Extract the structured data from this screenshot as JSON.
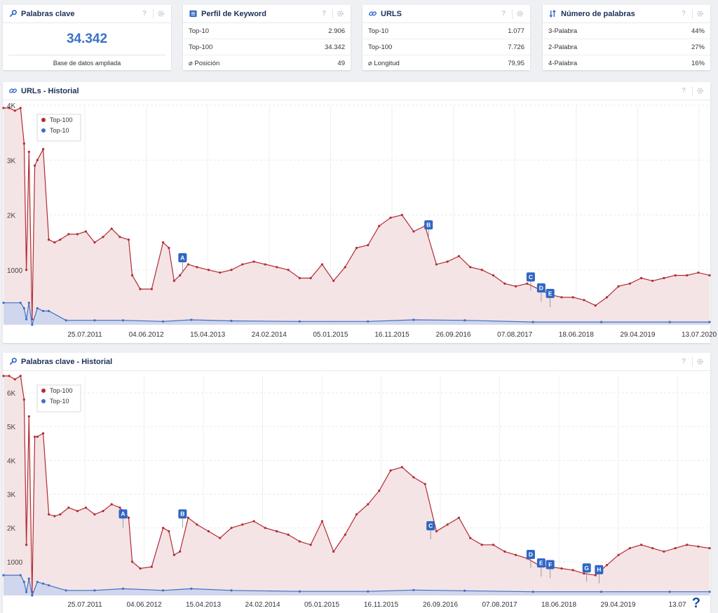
{
  "cards": [
    {
      "title": "Palabras clave",
      "icon": "key-icon",
      "value": "34.342",
      "subtitle": "Base de datos ampliada"
    },
    {
      "title": "Perfil de Keyword",
      "icon": "list-icon",
      "rows": [
        {
          "label": "Top-10",
          "value": "2.906"
        },
        {
          "label": "Top-100",
          "value": "34.342"
        },
        {
          "label": "⌀ Posición",
          "value": "49"
        }
      ]
    },
    {
      "title": "URLS",
      "icon": "link-icon",
      "rows": [
        {
          "label": "Top-10",
          "value": "1.077"
        },
        {
          "label": "Top-100",
          "value": "7.726"
        },
        {
          "label": "⌀ Longitud",
          "value": "79,95"
        }
      ]
    },
    {
      "title": "Número de palabras",
      "icon": "sort-icon",
      "rows": [
        {
          "label": "3-Palabra",
          "value": "44%"
        },
        {
          "label": "2-Palabra",
          "value": "27%"
        },
        {
          "label": "4-Palabra",
          "value": "16%"
        }
      ]
    }
  ],
  "toolbar": {
    "help_label": "?"
  },
  "help_button": "?",
  "colors": {
    "top100": "#b32b33",
    "top100_fill": "#f2dfe1",
    "top10": "#3e6fc6",
    "top10_fill": "#c9d4ef",
    "marker": "#2f66c4",
    "title": "#1c2f57"
  },
  "chart_data": [
    {
      "type": "area",
      "title": "URLs - Historial",
      "icon": "link-icon",
      "x_tick_labels": [
        "25.07.2011",
        "04.06.2012",
        "15.04.2013",
        "24.02.2014",
        "05.01.2015",
        "16.11.2015",
        "26.09.2016",
        "07.08.2017",
        "18.06.2018",
        "29.04.2019",
        "13.07.2020"
      ],
      "y_tick_labels": [
        "1000",
        "2K",
        "3K",
        "4K"
      ],
      "ylim": [
        0,
        4000
      ],
      "x_domain": [
        "2010-09-01",
        "2020-12-31"
      ],
      "legend": [
        "Top-100",
        "Top-10"
      ],
      "legend_position": "top-left",
      "grid": true,
      "series": [
        {
          "name": "Top-100",
          "x": [
            "2010-09-01",
            "2010-10-01",
            "2010-11-01",
            "2010-12-01",
            "2010-12-20",
            "2011-01-01",
            "2011-01-15",
            "2011-02-01",
            "2011-02-15",
            "2011-03-01",
            "2011-04-01",
            "2011-05-01",
            "2011-06-01",
            "2011-07-01",
            "2011-08-15",
            "2011-10-01",
            "2011-11-15",
            "2012-01-01",
            "2012-02-15",
            "2012-04-01",
            "2012-05-15",
            "2012-07-01",
            "2012-07-20",
            "2012-09-01",
            "2012-11-01",
            "2013-01-01",
            "2013-02-01",
            "2013-03-01",
            "2013-04-01",
            "2013-05-15",
            "2013-07-01",
            "2013-09-01",
            "2013-11-01",
            "2014-01-01",
            "2014-03-01",
            "2014-05-01",
            "2014-07-01",
            "2014-09-01",
            "2014-11-01",
            "2015-01-01",
            "2015-03-01",
            "2015-05-01",
            "2015-07-01",
            "2015-09-01",
            "2015-11-01",
            "2016-01-01",
            "2016-03-01",
            "2016-05-01",
            "2016-07-01",
            "2016-09-01",
            "2016-11-01",
            "2017-01-01",
            "2017-03-01",
            "2017-05-01",
            "2017-07-01",
            "2017-09-01",
            "2017-11-01",
            "2018-01-01",
            "2018-03-01",
            "2018-05-01",
            "2018-07-01",
            "2018-09-01",
            "2018-11-01",
            "2019-01-01",
            "2019-03-01",
            "2019-05-01",
            "2019-07-01",
            "2019-09-01",
            "2019-11-01",
            "2020-01-01",
            "2020-03-01",
            "2020-05-01",
            "2020-07-01",
            "2020-09-01",
            "2020-11-01",
            "2020-12-31"
          ],
          "y": [
            3950,
            3950,
            3900,
            3950,
            3300,
            1000,
            3150,
            100,
            2900,
            3000,
            3200,
            1550,
            1500,
            1550,
            1650,
            1650,
            1700,
            1500,
            1600,
            1750,
            1600,
            1550,
            900,
            650,
            650,
            1500,
            1400,
            800,
            900,
            1100,
            1050,
            1000,
            950,
            1000,
            1100,
            1150,
            1100,
            1050,
            1000,
            850,
            850,
            1100,
            800,
            1050,
            1400,
            1450,
            1800,
            1950,
            2000,
            1700,
            1800,
            1100,
            1150,
            1250,
            1050,
            1000,
            900,
            750,
            700,
            750,
            650,
            550,
            500,
            500,
            450,
            350,
            500,
            700,
            750,
            850,
            800,
            850,
            900,
            900,
            950,
            900
          ]
        },
        {
          "name": "Top-10",
          "x": [
            "2010-09-01",
            "2010-12-01",
            "2010-12-20",
            "2011-01-01",
            "2011-01-15",
            "2011-02-01",
            "2011-03-01",
            "2011-04-01",
            "2011-05-01",
            "2011-08-01",
            "2012-01-01",
            "2012-06-01",
            "2013-01-01",
            "2013-06-01",
            "2014-01-01",
            "2015-01-01",
            "2016-01-01",
            "2016-09-01",
            "2017-06-01",
            "2018-06-01",
            "2019-06-01",
            "2020-06-01",
            "2020-12-31"
          ],
          "y": [
            400,
            400,
            300,
            100,
            400,
            0,
            300,
            250,
            250,
            80,
            80,
            80,
            60,
            90,
            70,
            60,
            60,
            90,
            80,
            50,
            50,
            50,
            50
          ]
        }
      ],
      "annotations": [
        "A",
        "B",
        "C",
        "D",
        "E"
      ]
    },
    {
      "type": "area",
      "title": "Palabras clave - Historial",
      "icon": "key-icon",
      "x_tick_labels": [
        "25.07.2011",
        "04.06.2012",
        "15.04.2013",
        "24.02.2014",
        "05.01.2015",
        "16.11.2015",
        "26.09.2016",
        "07.08.2017",
        "18.06.2018",
        "29.04.2019",
        "13.07"
      ],
      "y_tick_labels": [
        "1000",
        "2K",
        "3K",
        "4K",
        "5K",
        "6K"
      ],
      "ylim": [
        0,
        6500
      ],
      "x_domain": [
        "2010-09-01",
        "2020-12-31"
      ],
      "legend": [
        "Top-100",
        "Top-10"
      ],
      "legend_position": "top-left",
      "grid": true,
      "series": [
        {
          "name": "Top-100",
          "x": [
            "2010-09-01",
            "2010-10-01",
            "2010-11-01",
            "2010-12-01",
            "2010-12-20",
            "2011-01-01",
            "2011-01-15",
            "2011-02-01",
            "2011-02-15",
            "2011-03-01",
            "2011-04-01",
            "2011-05-01",
            "2011-06-01",
            "2011-07-01",
            "2011-08-15",
            "2011-10-01",
            "2011-11-15",
            "2012-01-01",
            "2012-02-15",
            "2012-04-01",
            "2012-05-15",
            "2012-07-01",
            "2012-07-20",
            "2012-09-01",
            "2012-11-01",
            "2013-01-01",
            "2013-02-01",
            "2013-03-01",
            "2013-04-01",
            "2013-05-15",
            "2013-07-01",
            "2013-09-01",
            "2013-11-01",
            "2014-01-01",
            "2014-03-01",
            "2014-05-01",
            "2014-07-01",
            "2014-09-01",
            "2014-11-01",
            "2015-01-01",
            "2015-03-01",
            "2015-05-01",
            "2015-07-01",
            "2015-09-01",
            "2015-11-01",
            "2016-01-01",
            "2016-03-01",
            "2016-05-01",
            "2016-07-01",
            "2016-09-01",
            "2016-11-01",
            "2017-01-01",
            "2017-03-01",
            "2017-05-01",
            "2017-07-01",
            "2017-09-01",
            "2017-11-01",
            "2018-01-01",
            "2018-03-01",
            "2018-05-01",
            "2018-07-01",
            "2018-09-01",
            "2018-11-01",
            "2019-01-01",
            "2019-03-01",
            "2019-05-01",
            "2019-07-01",
            "2019-09-01",
            "2019-11-01",
            "2020-01-01",
            "2020-03-01",
            "2020-05-01",
            "2020-07-01",
            "2020-09-01",
            "2020-11-01",
            "2020-12-31"
          ],
          "y": [
            6500,
            6500,
            6400,
            6500,
            5800,
            1500,
            5300,
            100,
            4700,
            4700,
            4800,
            2400,
            2350,
            2400,
            2600,
            2500,
            2600,
            2400,
            2500,
            2700,
            2600,
            2300,
            1000,
            800,
            850,
            2000,
            1900,
            1200,
            1300,
            2300,
            2100,
            1900,
            1700,
            2000,
            2100,
            2200,
            2000,
            1900,
            1800,
            1600,
            1500,
            2200,
            1300,
            1800,
            2400,
            2700,
            3100,
            3700,
            3800,
            3500,
            3300,
            1900,
            2100,
            2300,
            1700,
            1500,
            1500,
            1300,
            1200,
            1100,
            900,
            850,
            800,
            750,
            650,
            600,
            900,
            1200,
            1400,
            1500,
            1400,
            1300,
            1400,
            1500,
            1450,
            1400
          ]
        },
        {
          "name": "Top-10",
          "x": [
            "2010-09-01",
            "2010-12-01",
            "2010-12-20",
            "2011-01-01",
            "2011-01-15",
            "2011-02-01",
            "2011-03-01",
            "2011-04-01",
            "2011-05-01",
            "2011-08-01",
            "2012-01-01",
            "2012-06-01",
            "2013-01-01",
            "2013-06-01",
            "2014-01-01",
            "2015-01-01",
            "2016-01-01",
            "2016-09-01",
            "2017-06-01",
            "2018-06-01",
            "2019-06-01",
            "2020-06-01",
            "2020-12-31"
          ],
          "y": [
            600,
            600,
            400,
            100,
            500,
            0,
            400,
            350,
            300,
            150,
            150,
            200,
            150,
            200,
            150,
            120,
            120,
            160,
            140,
            110,
            110,
            110,
            110
          ]
        }
      ],
      "annotations": [
        "A",
        "B",
        "C",
        "D",
        "E",
        "F",
        "G",
        "H"
      ]
    }
  ]
}
